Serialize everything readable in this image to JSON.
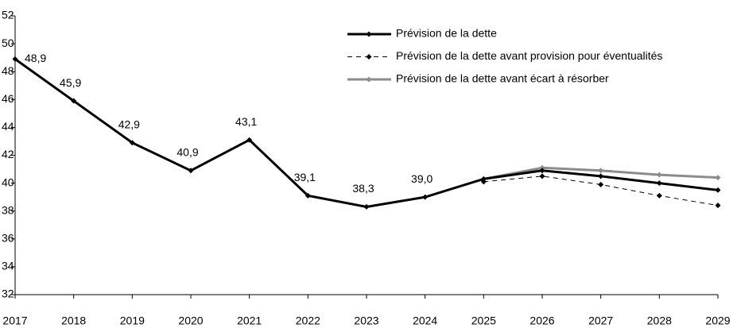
{
  "chart_data": {
    "type": "line",
    "categories": [
      "2017",
      "2018",
      "2019",
      "2020",
      "2021",
      "2022",
      "2023",
      "2024",
      "2025",
      "2026",
      "2027",
      "2028",
      "2029"
    ],
    "series": [
      {
        "name": "Prévision de la dette",
        "color": "#000000",
        "dash": false,
        "values": [
          48.9,
          45.9,
          42.9,
          40.9,
          43.1,
          39.1,
          38.3,
          39.0,
          40.3,
          40.9,
          40.5,
          40.0,
          39.5
        ],
        "value_labels": [
          "48,9",
          "45,9",
          "42,9",
          "40,9",
          "43,1",
          "39,1",
          "38,3",
          "39,0",
          null,
          null,
          null,
          null,
          null
        ]
      },
      {
        "name": "Prévision de la dette avant provision pour éventualités",
        "color": "#000000",
        "dash": true,
        "values": [
          null,
          null,
          null,
          null,
          null,
          null,
          null,
          null,
          40.1,
          40.5,
          39.9,
          39.1,
          38.4
        ]
      },
      {
        "name": "Prévision de la dette avant écart à résorber",
        "color": "#8c8c8c",
        "dash": false,
        "values": [
          null,
          null,
          null,
          null,
          null,
          null,
          null,
          null,
          40.3,
          41.1,
          40.9,
          40.6,
          40.4
        ]
      }
    ],
    "ylim": [
      32,
      52
    ],
    "yticks": [
      32,
      34,
      36,
      38,
      40,
      42,
      44,
      46,
      48,
      50,
      52
    ],
    "grid": false
  }
}
